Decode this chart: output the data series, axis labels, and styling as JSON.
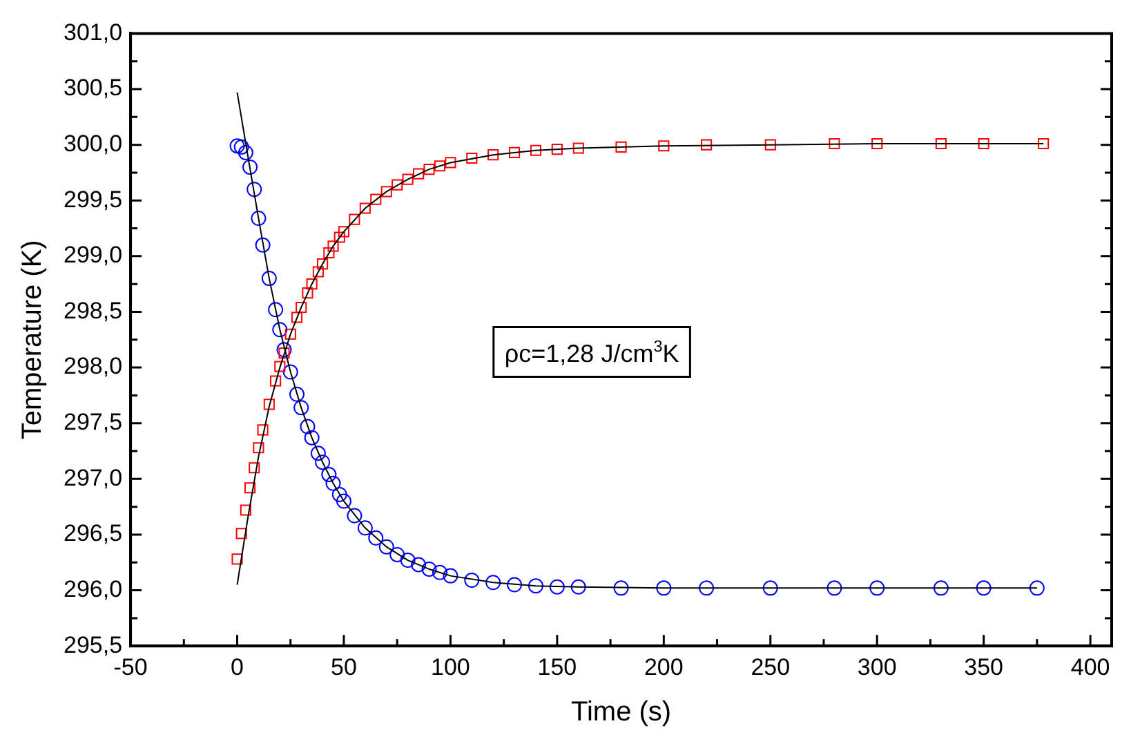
{
  "chart_data": {
    "type": "scatter",
    "xlabel": "Time (s)",
    "ylabel": "Temperature (K)",
    "annotations": [
      "ρc=1,28 J/cm$^{3}$K"
    ],
    "xlim": [
      -50,
      410
    ],
    "ylim": [
      295.5,
      301
    ],
    "xticks": [
      -50,
      {
        "value": -25,
        "label": null
      },
      0,
      {
        "value": 25,
        "label": null
      },
      50,
      {
        "value": 75,
        "label": null
      },
      100,
      {
        "value": 125,
        "label": null
      },
      150,
      {
        "value": 175,
        "label": null
      },
      200,
      {
        "value": 225,
        "label": null
      },
      250,
      {
        "value": 275,
        "label": null
      },
      300,
      {
        "value": 325,
        "label": null
      },
      350,
      {
        "value": 375,
        "label": null
      },
      400
    ],
    "yticks": [
      {
        "value": 295.5,
        "label": "295,5"
      },
      {
        "value": 295.75,
        "label": null
      },
      {
        "value": 296,
        "label": "296,0"
      },
      {
        "value": 296.25,
        "label": null
      },
      {
        "value": 296.5,
        "label": "296,5"
      },
      {
        "value": 296.75,
        "label": null
      },
      {
        "value": 297,
        "label": "297,0"
      },
      {
        "value": 297.25,
        "label": null
      },
      {
        "value": 297.5,
        "label": "297,5"
      },
      {
        "value": 297.75,
        "label": null
      },
      {
        "value": 298,
        "label": "298,0"
      },
      {
        "value": 298.25,
        "label": null
      },
      {
        "value": 298.5,
        "label": "298,5"
      },
      {
        "value": 298.75,
        "label": null
      },
      {
        "value": 299,
        "label": "299,0"
      },
      {
        "value": 299.25,
        "label": null
      },
      {
        "value": 299.5,
        "label": "299,5"
      },
      {
        "value": 299.75,
        "label": null
      },
      {
        "value": 300,
        "label": "300,0"
      },
      {
        "value": 300.25,
        "label": null
      },
      {
        "value": 300.5,
        "label": "300,5"
      },
      {
        "value": 300.75,
        "label": null
      },
      {
        "value": 301,
        "label": "301,0"
      }
    ],
    "grid": false,
    "legend": false,
    "series": [
      {
        "type": "scatter",
        "marker": "square",
        "color": "#ff0000",
        "x": [
          0,
          2,
          4,
          6,
          8,
          10,
          12,
          15,
          18,
          20,
          22,
          25,
          28,
          30,
          33,
          35,
          38,
          40,
          43,
          45,
          48,
          50,
          55,
          60,
          65,
          70,
          75,
          80,
          85,
          90,
          95,
          100,
          110,
          120,
          130,
          140,
          150,
          160,
          180,
          200,
          220,
          250,
          280,
          300,
          330,
          350,
          378
        ],
        "values": [
          296.28,
          296.51,
          296.72,
          296.92,
          297.1,
          297.28,
          297.44,
          297.67,
          297.88,
          298.01,
          298.13,
          298.3,
          298.45,
          298.54,
          298.67,
          298.75,
          298.86,
          298.93,
          299.03,
          299.09,
          299.17,
          299.22,
          299.33,
          299.43,
          299.51,
          299.58,
          299.64,
          299.69,
          299.74,
          299.78,
          299.81,
          299.84,
          299.88,
          299.91,
          299.93,
          299.95,
          299.96,
          299.97,
          299.98,
          299.99,
          300,
          300,
          300.01,
          300.01,
          300.01,
          300.01,
          300.01
        ]
      },
      {
        "type": "scatter",
        "marker": "circle",
        "color": "#0000ff",
        "x": [
          0,
          2,
          4,
          6,
          8,
          10,
          12,
          15,
          18,
          20,
          22,
          25,
          28,
          30,
          33,
          35,
          38,
          40,
          43,
          45,
          48,
          50,
          55,
          60,
          65,
          70,
          75,
          80,
          85,
          90,
          95,
          100,
          110,
          120,
          130,
          140,
          150,
          160,
          180,
          200,
          220,
          250,
          280,
          300,
          330,
          350,
          375
        ],
        "values": [
          299.99,
          299.98,
          299.93,
          299.8,
          299.6,
          299.34,
          299.1,
          298.8,
          298.52,
          298.34,
          298.16,
          297.96,
          297.76,
          297.64,
          297.47,
          297.37,
          297.23,
          297.15,
          297.04,
          296.96,
          296.86,
          296.8,
          296.67,
          296.56,
          296.47,
          296.39,
          296.32,
          296.27,
          296.23,
          296.19,
          296.16,
          296.13,
          296.09,
          296.07,
          296.05,
          296.04,
          296.03,
          296.03,
          296.02,
          296.02,
          296.02,
          296.02,
          296.02,
          296.02,
          296.02,
          296.02,
          296.02
        ]
      },
      {
        "type": "line",
        "marker": "none",
        "color": "#000000",
        "x": [
          0,
          5,
          10,
          15,
          20,
          25,
          30,
          35,
          40,
          45,
          50,
          60,
          70,
          80,
          90,
          100,
          120,
          140,
          160,
          200,
          250,
          300,
          378
        ],
        "values": [
          296.05,
          296.65,
          297.2,
          297.65,
          298.0,
          298.3,
          298.54,
          298.75,
          298.93,
          299.09,
          299.22,
          299.43,
          299.58,
          299.69,
          299.78,
          299.84,
          299.91,
          299.95,
          299.97,
          299.99,
          300,
          300.01,
          300.01
        ]
      },
      {
        "type": "line",
        "marker": "none",
        "color": "#000000",
        "x": [
          0,
          5,
          10,
          15,
          20,
          25,
          30,
          35,
          40,
          45,
          50,
          60,
          70,
          80,
          90,
          100,
          120,
          140,
          160,
          200,
          250,
          300,
          375
        ],
        "values": [
          300.47,
          299.9,
          299.34,
          298.8,
          298.34,
          297.96,
          297.64,
          297.37,
          297.15,
          296.96,
          296.8,
          296.56,
          296.39,
          296.27,
          296.19,
          296.13,
          296.07,
          296.04,
          296.03,
          296.02,
          296.02,
          296.02,
          296.02
        ]
      }
    ]
  }
}
